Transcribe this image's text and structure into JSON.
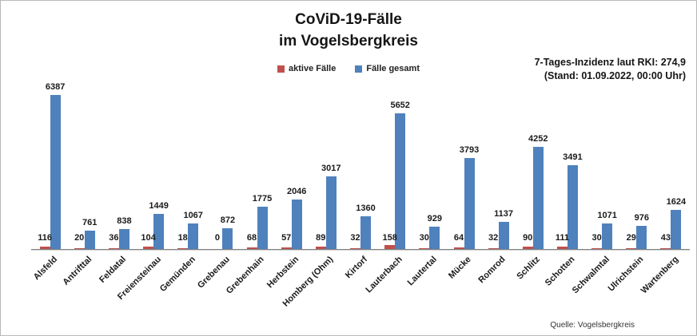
{
  "title": {
    "line1": "CoViD-19-Fälle",
    "line2": "im Vogelsbergkreis"
  },
  "annotation": {
    "line1": "7-Tages-Inzidenz laut RKI: 274,9",
    "line2": "(Stand: 01.09.2022, 00:00 Uhr)"
  },
  "source_note": "Quelle: Vogelsbergkreis",
  "colors": {
    "active_series": "#c0504d",
    "total_series": "#4f81bd",
    "axis": "#808080",
    "text": "#1a1a1a",
    "background": "#ffffff"
  },
  "chart_data": {
    "type": "bar",
    "title": "CoViD-19-Fälle im Vogelsbergkreis",
    "xlabel": "",
    "ylabel": "",
    "ylim": [
      0,
      6500
    ],
    "grid": false,
    "legend_position": "top-center",
    "data_labels": true,
    "categories": [
      "Alsfeld",
      "Antrifttal",
      "Feldatal",
      "Freiensteinau",
      "Gemünden",
      "Grebenau",
      "Grebenhain",
      "Herbstein",
      "Homberg (Ohm)",
      "Kirtorf",
      "Lauterbach",
      "Lautertal",
      "Mücke",
      "Romrod",
      "Schlitz",
      "Schotten",
      "Schwalmtal",
      "Ulrichstein",
      "Wartenberg"
    ],
    "series": [
      {
        "name": "aktive Fälle",
        "color": "#c0504d",
        "values": [
          116,
          20,
          36,
          104,
          18,
          0,
          68,
          57,
          89,
          32,
          158,
          30,
          64,
          32,
          90,
          111,
          30,
          29,
          43
        ]
      },
      {
        "name": "Fälle gesamt",
        "color": "#4f81bd",
        "values": [
          6387,
          761,
          838,
          1449,
          1067,
          872,
          1775,
          2046,
          3017,
          1360,
          5652,
          929,
          3793,
          1137,
          4252,
          3491,
          1071,
          976,
          1624
        ]
      }
    ]
  }
}
